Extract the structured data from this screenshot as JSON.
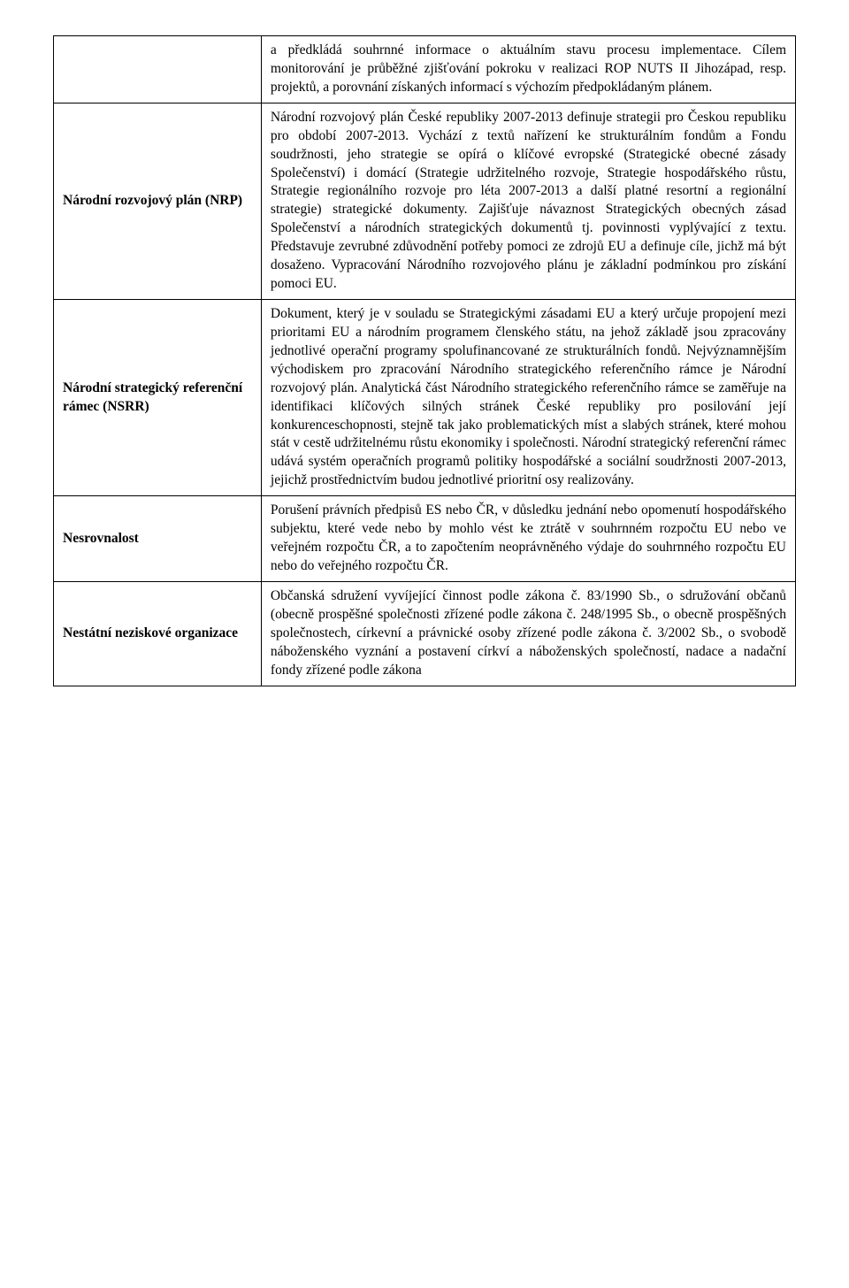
{
  "table": {
    "rows": [
      {
        "term": "",
        "definition": "a předkládá souhrnné informace o aktuálním stavu procesu implementace. Cílem monitorování je průběžné zjišťování pokroku v realizaci ROP NUTS II Jihozápad, resp. projektů, a porovnání získaných informací s výchozím předpokládaným plánem."
      },
      {
        "term": "Národní rozvojový plán (NRP)",
        "definition": "Národní rozvojový plán České republiky 2007-2013 definuje strategii pro Českou republiku pro období 2007-2013. Vychází z textů nařízení ke strukturálním fondům a Fondu soudržnosti, jeho strategie se opírá o klíčové evropské (Strategické obecné zásady Společenství) i domácí (Strategie udržitelného rozvoje, Strategie hospodářského růstu, Strategie regionálního rozvoje pro léta 2007-2013 a další platné resortní a regionální strategie) strategické dokumenty. Zajišťuje návaznost Strategických obecných zásad Společenství a národních strategických dokumentů tj. povinnosti vyplývající z textu. Představuje zevrubné zdůvodnění potřeby pomoci ze zdrojů EU a definuje cíle, jichž má být dosaženo. Vypracování Národního rozvojového plánu je základní podmínkou pro získání pomoci EU."
      },
      {
        "term": "Národní strategický referenční rámec (NSRR)",
        "definition": "Dokument, který je v souladu se Strategickými zásadami EU a který určuje propojení mezi prioritami EU a národním programem členského státu, na jehož základě jsou zpracovány jednotlivé operační programy spolufinancované ze strukturálních fondů. Nejvýznamnějším východiskem pro zpracování Národního strategického referenčního rámce je Národní rozvojový plán. Analytická část Národního strategického referenčního rámce se zaměřuje na identifikaci klíčových silných stránek České republiky pro posilování její konkurenceschopnosti, stejně tak jako problematických míst a slabých stránek, které mohou stát v cestě udržitelnému růstu ekonomiky i společnosti. Národní strategický referenční rámec udává systém operačních programů politiky hospodářské a sociální soudržnosti 2007-2013, jejichž prostřednictvím budou jednotlivé prioritní osy realizovány."
      },
      {
        "term": "Nesrovnalost",
        "definition": "Porušení právních předpisů ES nebo ČR, v důsledku jednání nebo opomenutí hospodářského subjektu, které vede nebo by mohlo vést ke ztrátě v souhrnném rozpočtu EU nebo ve veřejném rozpočtu ČR, a to započtením neoprávněného výdaje do souhrnného rozpočtu EU nebo do veřejného rozpočtu ČR."
      },
      {
        "term": "Nestátní neziskové organizace",
        "definition": "Občanská sdružení vyvíjející činnost podle zákona č. 83/1990 Sb., o sdružování občanů (obecně prospěšné společnosti zřízené podle zákona č. 248/1995 Sb., o obecně prospěšných společnostech, církevní a právnické osoby zřízené podle zákona č. 3/2002 Sb., o svobodě náboženského vyznání a postavení církví a náboženských společností, nadace a nadační fondy zřízené podle zákona"
      }
    ]
  }
}
